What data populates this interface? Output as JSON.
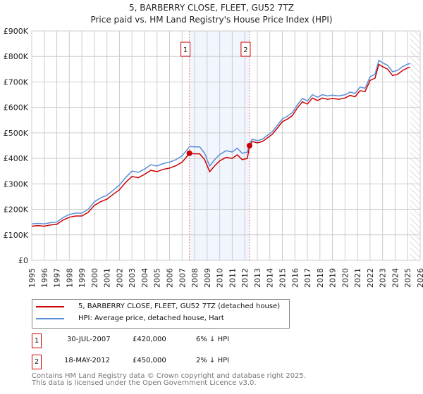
{
  "chart_data": {
    "type": "line",
    "title": "5, BARBERRY CLOSE, FLEET, GU52 7TZ",
    "subtitle": "Price paid vs. HM Land Registry's House Price Index (HPI)",
    "xlim": [
      1995,
      2026
    ],
    "ylim": [
      0,
      900000
    ],
    "y_ticks": [
      0,
      100000,
      200000,
      300000,
      400000,
      500000,
      600000,
      700000,
      800000,
      900000
    ],
    "y_tick_labels": [
      "£0",
      "£100K",
      "£200K",
      "£300K",
      "£400K",
      "£500K",
      "£600K",
      "£700K",
      "£800K",
      "£900K"
    ],
    "x_tick_labels": [
      "1995",
      "1996",
      "1997",
      "1998",
      "1999",
      "2000",
      "2001",
      "2002",
      "2003",
      "2004",
      "2005",
      "2006",
      "2007",
      "2008",
      "2009",
      "2010",
      "2011",
      "2012",
      "2013",
      "2014",
      "2015",
      "2016",
      "2017",
      "2018",
      "2019",
      "2020",
      "2021",
      "2022",
      "2023",
      "2024",
      "2025",
      "2026"
    ],
    "grid": true,
    "forecast_hatch_from": 2025.2,
    "shaded_range": [
      2007.58,
      2012.38
    ],
    "x": [
      1995,
      1995.5,
      1996,
      1996.5,
      1997,
      1997.5,
      1998,
      1998.5,
      1999,
      1999.5,
      2000,
      2000.5,
      2001,
      2001.5,
      2002,
      2002.5,
      2003,
      2003.5,
      2004,
      2004.5,
      2005,
      2005.5,
      2006,
      2006.5,
      2007,
      2007.5,
      2007.6,
      2008,
      2008.4,
      2008.8,
      2009.2,
      2009.6,
      2010,
      2010.5,
      2011,
      2011.4,
      2011.8,
      2012.2,
      2012.4,
      2012.6,
      2013,
      2013.4,
      2013.8,
      2014.2,
      2014.6,
      2015,
      2015.4,
      2015.8,
      2016.2,
      2016.6,
      2017,
      2017.4,
      2017.8,
      2018.2,
      2018.6,
      2019,
      2019.5,
      2020,
      2020.4,
      2020.8,
      2021.2,
      2021.6,
      2022,
      2022.4,
      2022.7,
      2023,
      2023.4,
      2023.8,
      2024.2,
      2024.6,
      2025,
      2025.2
    ],
    "series": [
      {
        "name": "5, BARBERRY CLOSE, FLEET, GU52 7TZ (detached house)",
        "color": "#cc0000",
        "values": [
          134,
          136,
          134,
          139,
          141,
          158,
          169,
          174,
          174,
          188,
          216,
          230,
          240,
          259,
          277,
          306,
          329,
          324,
          337,
          353,
          348,
          357,
          362,
          371,
          385,
          414,
          420,
          418,
          418,
          395,
          348,
          371,
          390,
          404,
          400,
          414,
          395,
          400,
          450,
          466,
          461,
          466,
          480,
          495,
          519,
          544,
          554,
          568,
          598,
          622,
          613,
          637,
          627,
          637,
          632,
          635,
          632,
          637,
          647,
          642,
          666,
          662,
          706,
          715,
          769,
          760,
          750,
          725,
          730,
          745,
          755,
          757
        ]
      },
      {
        "name": "HPI: Average price, detached house, Hart",
        "color": "#5b8fd6",
        "values": [
          143,
          145,
          143,
          148,
          150,
          168,
          180,
          185,
          185,
          200,
          230,
          245,
          255,
          275,
          295,
          325,
          350,
          345,
          358,
          375,
          370,
          380,
          385,
          395,
          410,
          440,
          447,
          445,
          445,
          420,
          370,
          395,
          415,
          430,
          425,
          440,
          420,
          425,
          459,
          475,
          470,
          475,
          490,
          505,
          530,
          555,
          565,
          580,
          610,
          635,
          625,
          650,
          640,
          650,
          645,
          648,
          645,
          650,
          660,
          655,
          680,
          675,
          720,
          730,
          785,
          775,
          765,
          740,
          745,
          760,
          770,
          772
        ]
      }
    ],
    "value_unit": "thousand GBP",
    "sales": [
      {
        "label": "1",
        "x": 2007.58,
        "price": 420,
        "date": "30-JUL-2007",
        "price_text": "£420,000",
        "hpi_text": "6% ↓ HPI"
      },
      {
        "label": "2",
        "x": 2012.38,
        "price": 450,
        "date": "18-MAY-2012",
        "price_text": "£450,000",
        "hpi_text": "2% ↓ HPI"
      }
    ]
  },
  "legend": {
    "red": "5, BARBERRY CLOSE, FLEET, GU52 7TZ (detached house)",
    "blue": "HPI: Average price, detached house, Hart"
  },
  "footer": {
    "line1": "Contains HM Land Registry data © Crown copyright and database right 2025.",
    "line2": "This data is licensed under the Open Government Licence v3.0."
  }
}
